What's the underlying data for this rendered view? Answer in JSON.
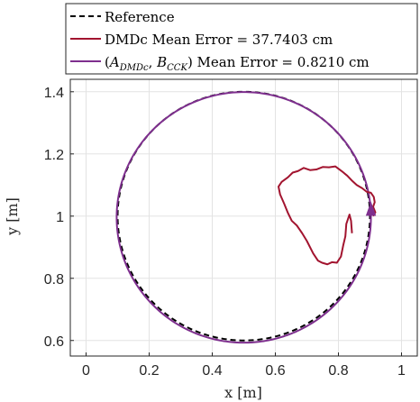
{
  "chart_data": {
    "type": "line",
    "title": "",
    "xlabel": "x [m]",
    "ylabel": "y [m]",
    "xlim": [
      -0.05,
      1.05
    ],
    "ylim": [
      0.55,
      1.44
    ],
    "xticks": [
      0,
      0.2,
      0.4,
      0.6,
      0.8,
      1
    ],
    "yticks": [
      0.6,
      0.8,
      1,
      1.2,
      1.4
    ],
    "xtick_labels": [
      "0",
      "0.2",
      "0.4",
      "0.6",
      "0.8",
      "1"
    ],
    "ytick_labels": [
      "0.6",
      "0.8",
      "1",
      "1.2",
      "1.4"
    ],
    "grid": true,
    "legend_position": "top, outside plot area",
    "series": [
      {
        "name": "Reference",
        "color": "#000000",
        "style": "dashed",
        "shape": "circle",
        "center": [
          0.5,
          1.0
        ],
        "radius": 0.4
      },
      {
        "name": "DMDc Mean Error = 37.7403 cm",
        "color": "#A2142F",
        "style": "solid",
        "points": [
          [
            0.843,
            0.945
          ],
          [
            0.84,
            0.985
          ],
          [
            0.835,
            1.005
          ],
          [
            0.825,
            0.975
          ],
          [
            0.822,
            0.935
          ],
          [
            0.815,
            0.905
          ],
          [
            0.808,
            0.87
          ],
          [
            0.795,
            0.85
          ],
          [
            0.78,
            0.852
          ],
          [
            0.765,
            0.845
          ],
          [
            0.748,
            0.85
          ],
          [
            0.735,
            0.857
          ],
          [
            0.72,
            0.88
          ],
          [
            0.7,
            0.92
          ],
          [
            0.685,
            0.945
          ],
          [
            0.668,
            0.97
          ],
          [
            0.652,
            0.985
          ],
          [
            0.64,
            1.01
          ],
          [
            0.628,
            1.04
          ],
          [
            0.615,
            1.07
          ],
          [
            0.61,
            1.095
          ],
          [
            0.62,
            1.11
          ],
          [
            0.64,
            1.125
          ],
          [
            0.655,
            1.14
          ],
          [
            0.672,
            1.145
          ],
          [
            0.69,
            1.155
          ],
          [
            0.71,
            1.148
          ],
          [
            0.73,
            1.15
          ],
          [
            0.75,
            1.158
          ],
          [
            0.77,
            1.157
          ],
          [
            0.79,
            1.16
          ],
          [
            0.81,
            1.145
          ],
          [
            0.828,
            1.13
          ],
          [
            0.842,
            1.115
          ],
          [
            0.858,
            1.1
          ],
          [
            0.875,
            1.09
          ],
          [
            0.89,
            1.078
          ],
          [
            0.903,
            1.075
          ],
          [
            0.912,
            1.062
          ],
          [
            0.915,
            1.045
          ],
          [
            0.91,
            1.03
          ],
          [
            0.917,
            1.012
          ],
          [
            0.91,
            1.0
          ]
        ]
      },
      {
        "name": "(A_DMDc, B_CCK) Mean Error = 0.8210 cm",
        "color": "#7E2F8E",
        "style": "solid",
        "shape": "circle",
        "center": [
          0.5,
          0.996
        ],
        "radius": 0.403,
        "arrow_at": [
          0.903,
          1.02
        ]
      }
    ]
  }
}
